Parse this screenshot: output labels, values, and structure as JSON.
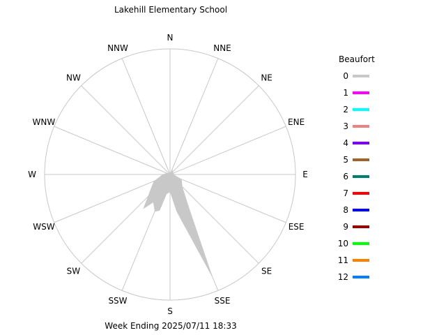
{
  "chart_data": {
    "type": "wind-rose",
    "title": "Lakehill Elementary School",
    "footer": "Week Ending 2025/07/11 18:33",
    "directions": [
      "N",
      "NNE",
      "NE",
      "ENE",
      "E",
      "ESE",
      "SE",
      "SSE",
      "S",
      "SSW",
      "SW",
      "WSW",
      "W",
      "WNW",
      "NW",
      "NNW"
    ],
    "rmax": 100,
    "grid": true,
    "legend": {
      "title": "Beaufort",
      "placement": "right",
      "entries": [
        {
          "label": "0",
          "color": "#c8c8c8"
        },
        {
          "label": "1",
          "color": "#ff00ff"
        },
        {
          "label": "2",
          "color": "#00ffff"
        },
        {
          "label": "3",
          "color": "#f08080"
        },
        {
          "label": "4",
          "color": "#8000ff"
        },
        {
          "label": "5",
          "color": "#a0642a"
        },
        {
          "label": "6",
          "color": "#008070"
        },
        {
          "label": "7",
          "color": "#ff0000"
        },
        {
          "label": "8",
          "color": "#0000ff"
        },
        {
          "label": "9",
          "color": "#a00000"
        },
        {
          "label": "10",
          "color": "#00ff00"
        },
        {
          "label": "11",
          "color": "#ff8000"
        },
        {
          "label": "12",
          "color": "#0080ff"
        }
      ]
    },
    "series": [
      {
        "beaufort": "0",
        "sectors": [
          {
            "dir": 0,
            "r": 0
          },
          {
            "dir": 22.5,
            "r": 5
          },
          {
            "dir": 45,
            "r": 3
          },
          {
            "dir": 67.5,
            "r": 3
          },
          {
            "dir": 90,
            "r": 3
          },
          {
            "dir": 112.5,
            "r": 10
          },
          {
            "dir": 135,
            "r": 14
          },
          {
            "dir": 157.5,
            "r": 90
          },
          {
            "dir": 180,
            "r": 14
          },
          {
            "dir": 202.5,
            "r": 32
          },
          {
            "dir": 225,
            "r": 25
          },
          {
            "dir": 247.5,
            "r": 14
          },
          {
            "dir": 270,
            "r": 6
          },
          {
            "dir": 292.5,
            "r": 3
          },
          {
            "dir": 315,
            "r": 0
          },
          {
            "dir": 337.5,
            "r": 0
          },
          {
            "dir": 150,
            "r": 30
          },
          {
            "dir": 170,
            "r": 30
          },
          {
            "dir": 190,
            "r": 16
          },
          {
            "dir": 196,
            "r": 30
          },
          {
            "dir": 211,
            "r": 26
          },
          {
            "dir": 218,
            "r": 35
          },
          {
            "dir": 232,
            "r": 20
          }
        ]
      }
    ]
  }
}
